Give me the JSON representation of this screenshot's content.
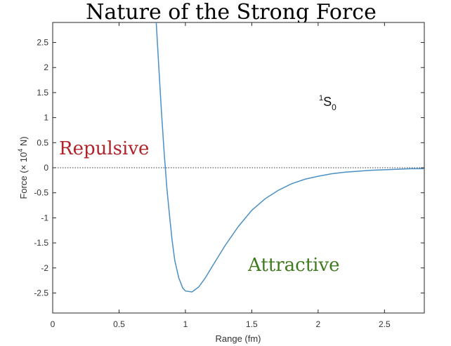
{
  "chart_data": {
    "type": "line",
    "title": "Nature of the Strong Force",
    "xlabel": "Range (fm)",
    "ylabel_main": "Force (× 10",
    "ylabel_exp": "4",
    "ylabel_tail": " N)",
    "xlim": [
      0,
      2.8
    ],
    "ylim": [
      -2.9,
      2.9
    ],
    "x_ticks": [
      0,
      0.5,
      1,
      1.5,
      2,
      2.5
    ],
    "x_tick_labels": [
      "0",
      "0.5",
      "1",
      "1.5",
      "2",
      "2.5"
    ],
    "y_ticks": [
      2.5,
      2,
      1.5,
      1,
      0.5,
      0,
      -0.5,
      -1,
      -1.5,
      -2,
      -2.5
    ],
    "y_tick_labels": [
      "2.5",
      "2",
      "1.5",
      "1",
      "0.5",
      "0",
      "-0.5",
      "-1",
      "-1.5",
      "-2",
      "-2.5"
    ],
    "grid": false,
    "zero_line": "dotted",
    "series": [
      {
        "color": "#4a90c4",
        "x": [
          0.78,
          0.8,
          0.82,
          0.84,
          0.86,
          0.88,
          0.9,
          0.92,
          0.95,
          0.98,
          1.0,
          1.05,
          1.1,
          1.15,
          1.2,
          1.3,
          1.4,
          1.5,
          1.6,
          1.7,
          1.8,
          1.9,
          2.0,
          2.1,
          2.2,
          2.3,
          2.4,
          2.5,
          2.6,
          2.7,
          2.8
        ],
        "y": [
          2.9,
          2.0,
          1.1,
          0.3,
          -0.4,
          -0.95,
          -1.45,
          -1.85,
          -2.2,
          -2.4,
          -2.46,
          -2.48,
          -2.38,
          -2.2,
          -1.98,
          -1.55,
          -1.17,
          -0.85,
          -0.62,
          -0.45,
          -0.32,
          -0.23,
          -0.17,
          -0.12,
          -0.09,
          -0.07,
          -0.05,
          -0.04,
          -0.03,
          -0.02,
          -0.02
        ]
      }
    ],
    "annotations": {
      "repulsive": "Repulsive",
      "attractive": "Attractive",
      "state_pre": "1",
      "state_main": "S",
      "state_sub": "0"
    },
    "colors": {
      "repulsive": "#b0232a",
      "attractive": "#3f7a1e",
      "line": "#4a90c4"
    }
  }
}
